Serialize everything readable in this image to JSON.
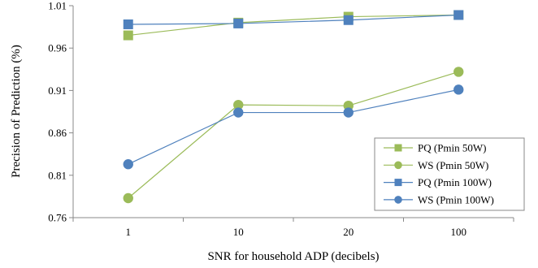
{
  "chart_data": {
    "type": "line",
    "title": "",
    "xlabel": "SNR for household ADP (decibels)",
    "ylabel": "Precision of Prediction (%)",
    "categories": [
      "1",
      "10",
      "20",
      "100"
    ],
    "ylim": [
      0.76,
      1.01
    ],
    "yticks": [
      "0.76",
      "0.81",
      "0.86",
      "0.91",
      "0.96",
      "1.01"
    ],
    "grid": false,
    "legend_position": "bottom-right",
    "series": [
      {
        "name": "PQ (Pmin 50W)",
        "marker": "square",
        "color": "#9BBB59",
        "values": [
          0.975,
          0.99,
          0.997,
          0.999
        ]
      },
      {
        "name": "WS (Pmin 50W)",
        "marker": "circle",
        "color": "#9BBB59",
        "values": [
          0.783,
          0.893,
          0.892,
          0.932
        ]
      },
      {
        "name": "PQ (Pmin 100W)",
        "marker": "square",
        "color": "#4F81BD",
        "values": [
          0.988,
          0.989,
          0.993,
          0.999
        ]
      },
      {
        "name": "WS (Pmin 100W)",
        "marker": "circle",
        "color": "#4F81BD",
        "values": [
          0.823,
          0.884,
          0.884,
          0.911
        ]
      }
    ]
  }
}
